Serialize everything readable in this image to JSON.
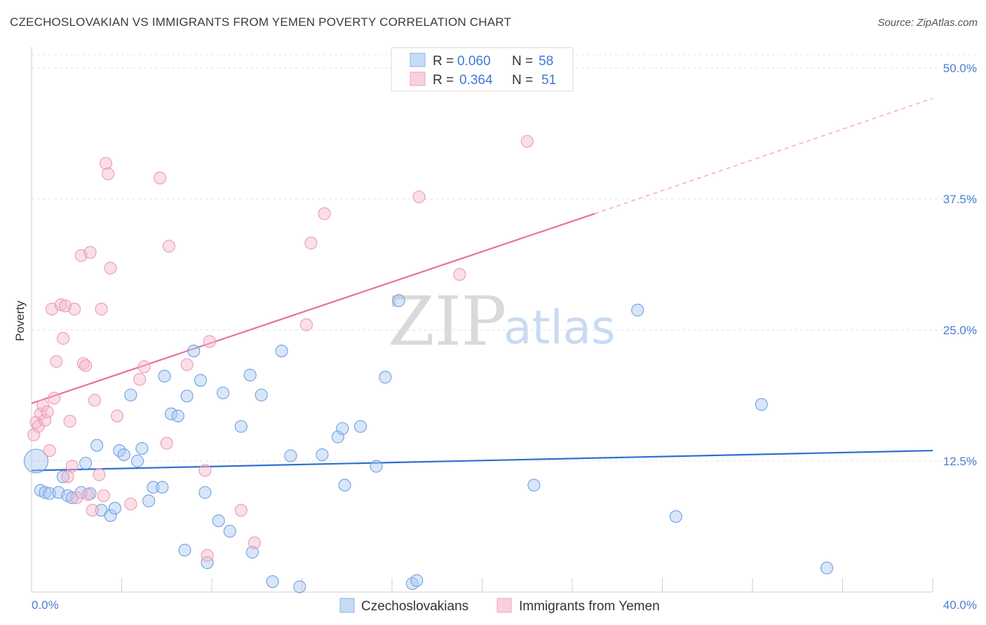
{
  "header": {
    "title": "CZECHOSLOVAKIAN VS IMMIGRANTS FROM YEMEN POVERTY CORRELATION CHART",
    "source": "Source: ZipAtlas.com"
  },
  "watermark": {
    "zip": "ZIP",
    "atlas": "atlas"
  },
  "legend": {
    "rows": [
      {
        "r_label": "R =",
        "r_value": "0.060",
        "n_label": "N =",
        "n_value": "58",
        "color": "#a9c8f0"
      },
      {
        "r_label": "R =",
        "r_value": "0.364",
        "n_label": "N =",
        "n_value": "51",
        "color": "#f5b8c9"
      }
    ]
  },
  "bottom_legend": [
    {
      "label": "Czechoslovakians",
      "color": "#a9c8f0"
    },
    {
      "label": "Immigrants from Yemen",
      "color": "#f5b8c9"
    }
  ],
  "chart_data": {
    "type": "scatter",
    "xlabel": "",
    "ylabel": "Poverty",
    "xlim": [
      0,
      40
    ],
    "ylim": [
      0,
      50
    ],
    "x_tick_labels": [
      "0.0%",
      "40.0%"
    ],
    "y_ticks": [
      12.5,
      25.0,
      37.5,
      50.0
    ],
    "y_tick_labels": [
      "12.5%",
      "25.0%",
      "37.5%",
      "50.0%"
    ],
    "grid": "horizontal dashed",
    "legend_position": "top-center",
    "series": [
      {
        "name": "Czechoslovakians",
        "color": "#6fa0e3",
        "trend": {
          "x": [
            0,
            40
          ],
          "y": [
            11.6,
            13.5
          ],
          "color": "#2f6fcf"
        },
        "points": [
          [
            0.2,
            12.5
          ],
          [
            0.4,
            9.7
          ],
          [
            0.6,
            9.5
          ],
          [
            0.8,
            9.4
          ],
          [
            1.2,
            9.5
          ],
          [
            1.4,
            11.0
          ],
          [
            1.6,
            9.2
          ],
          [
            1.8,
            9.0
          ],
          [
            2.2,
            9.5
          ],
          [
            2.4,
            12.3
          ],
          [
            2.6,
            9.4
          ],
          [
            2.9,
            14.0
          ],
          [
            3.1,
            7.8
          ],
          [
            3.5,
            7.3
          ],
          [
            3.7,
            8.0
          ],
          [
            3.9,
            13.5
          ],
          [
            4.1,
            13.1
          ],
          [
            4.4,
            18.8
          ],
          [
            4.7,
            12.5
          ],
          [
            4.9,
            13.7
          ],
          [
            5.2,
            8.7
          ],
          [
            5.4,
            10.0
          ],
          [
            5.8,
            10.0
          ],
          [
            5.9,
            20.6
          ],
          [
            6.2,
            17.0
          ],
          [
            6.5,
            16.8
          ],
          [
            6.8,
            4.0
          ],
          [
            6.9,
            18.7
          ],
          [
            7.2,
            23.0
          ],
          [
            7.5,
            20.2
          ],
          [
            7.7,
            9.5
          ],
          [
            7.8,
            2.8
          ],
          [
            8.3,
            6.8
          ],
          [
            8.5,
            19.0
          ],
          [
            8.8,
            5.8
          ],
          [
            9.3,
            15.8
          ],
          [
            9.7,
            20.7
          ],
          [
            9.8,
            3.8
          ],
          [
            10.2,
            18.8
          ],
          [
            10.7,
            1.0
          ],
          [
            11.1,
            23.0
          ],
          [
            11.5,
            13.0
          ],
          [
            11.9,
            0.5
          ],
          [
            12.9,
            13.1
          ],
          [
            13.6,
            14.8
          ],
          [
            13.8,
            15.6
          ],
          [
            13.9,
            10.2
          ],
          [
            14.6,
            15.8
          ],
          [
            15.3,
            12.0
          ],
          [
            15.7,
            20.5
          ],
          [
            16.3,
            27.8
          ],
          [
            16.9,
            0.8
          ],
          [
            17.1,
            1.1
          ],
          [
            22.3,
            10.2
          ],
          [
            26.9,
            26.9
          ],
          [
            28.6,
            7.2
          ],
          [
            32.4,
            17.9
          ],
          [
            35.3,
            2.3
          ]
        ]
      },
      {
        "name": "Immigrants from Yemen",
        "color": "#f19ab5",
        "trend": {
          "x": [
            0,
            25.0
          ],
          "y": [
            18.0,
            36.1
          ],
          "dashed_to": [
            40,
            47.1
          ],
          "color": "#e8709a"
        },
        "points": [
          [
            0.1,
            15.0
          ],
          [
            0.2,
            16.2
          ],
          [
            0.3,
            15.8
          ],
          [
            0.4,
            17.0
          ],
          [
            0.5,
            17.8
          ],
          [
            0.6,
            16.4
          ],
          [
            0.7,
            17.2
          ],
          [
            0.8,
            13.5
          ],
          [
            0.9,
            27.0
          ],
          [
            1.0,
            18.5
          ],
          [
            1.1,
            22.0
          ],
          [
            1.3,
            27.4
          ],
          [
            1.4,
            24.2
          ],
          [
            1.5,
            27.3
          ],
          [
            1.6,
            11.0
          ],
          [
            1.7,
            16.3
          ],
          [
            1.8,
            12.0
          ],
          [
            1.9,
            27.0
          ],
          [
            2.0,
            9.0
          ],
          [
            2.2,
            32.1
          ],
          [
            2.3,
            21.8
          ],
          [
            2.4,
            21.6
          ],
          [
            2.5,
            9.3
          ],
          [
            2.6,
            32.4
          ],
          [
            2.7,
            7.8
          ],
          [
            2.8,
            18.3
          ],
          [
            3.0,
            11.2
          ],
          [
            3.1,
            27.0
          ],
          [
            3.2,
            9.2
          ],
          [
            3.3,
            40.9
          ],
          [
            3.4,
            39.9
          ],
          [
            3.5,
            30.9
          ],
          [
            3.8,
            16.8
          ],
          [
            4.4,
            8.4
          ],
          [
            4.8,
            20.3
          ],
          [
            5.0,
            21.5
          ],
          [
            5.7,
            39.5
          ],
          [
            6.0,
            14.2
          ],
          [
            6.1,
            33.0
          ],
          [
            6.9,
            21.7
          ],
          [
            7.7,
            11.6
          ],
          [
            7.8,
            3.5
          ],
          [
            7.9,
            23.9
          ],
          [
            9.3,
            7.8
          ],
          [
            9.9,
            4.7
          ],
          [
            12.2,
            25.5
          ],
          [
            12.4,
            33.3
          ],
          [
            13.0,
            36.1
          ],
          [
            17.2,
            37.7
          ],
          [
            19.0,
            30.3
          ],
          [
            22.0,
            43.0
          ]
        ]
      }
    ]
  }
}
